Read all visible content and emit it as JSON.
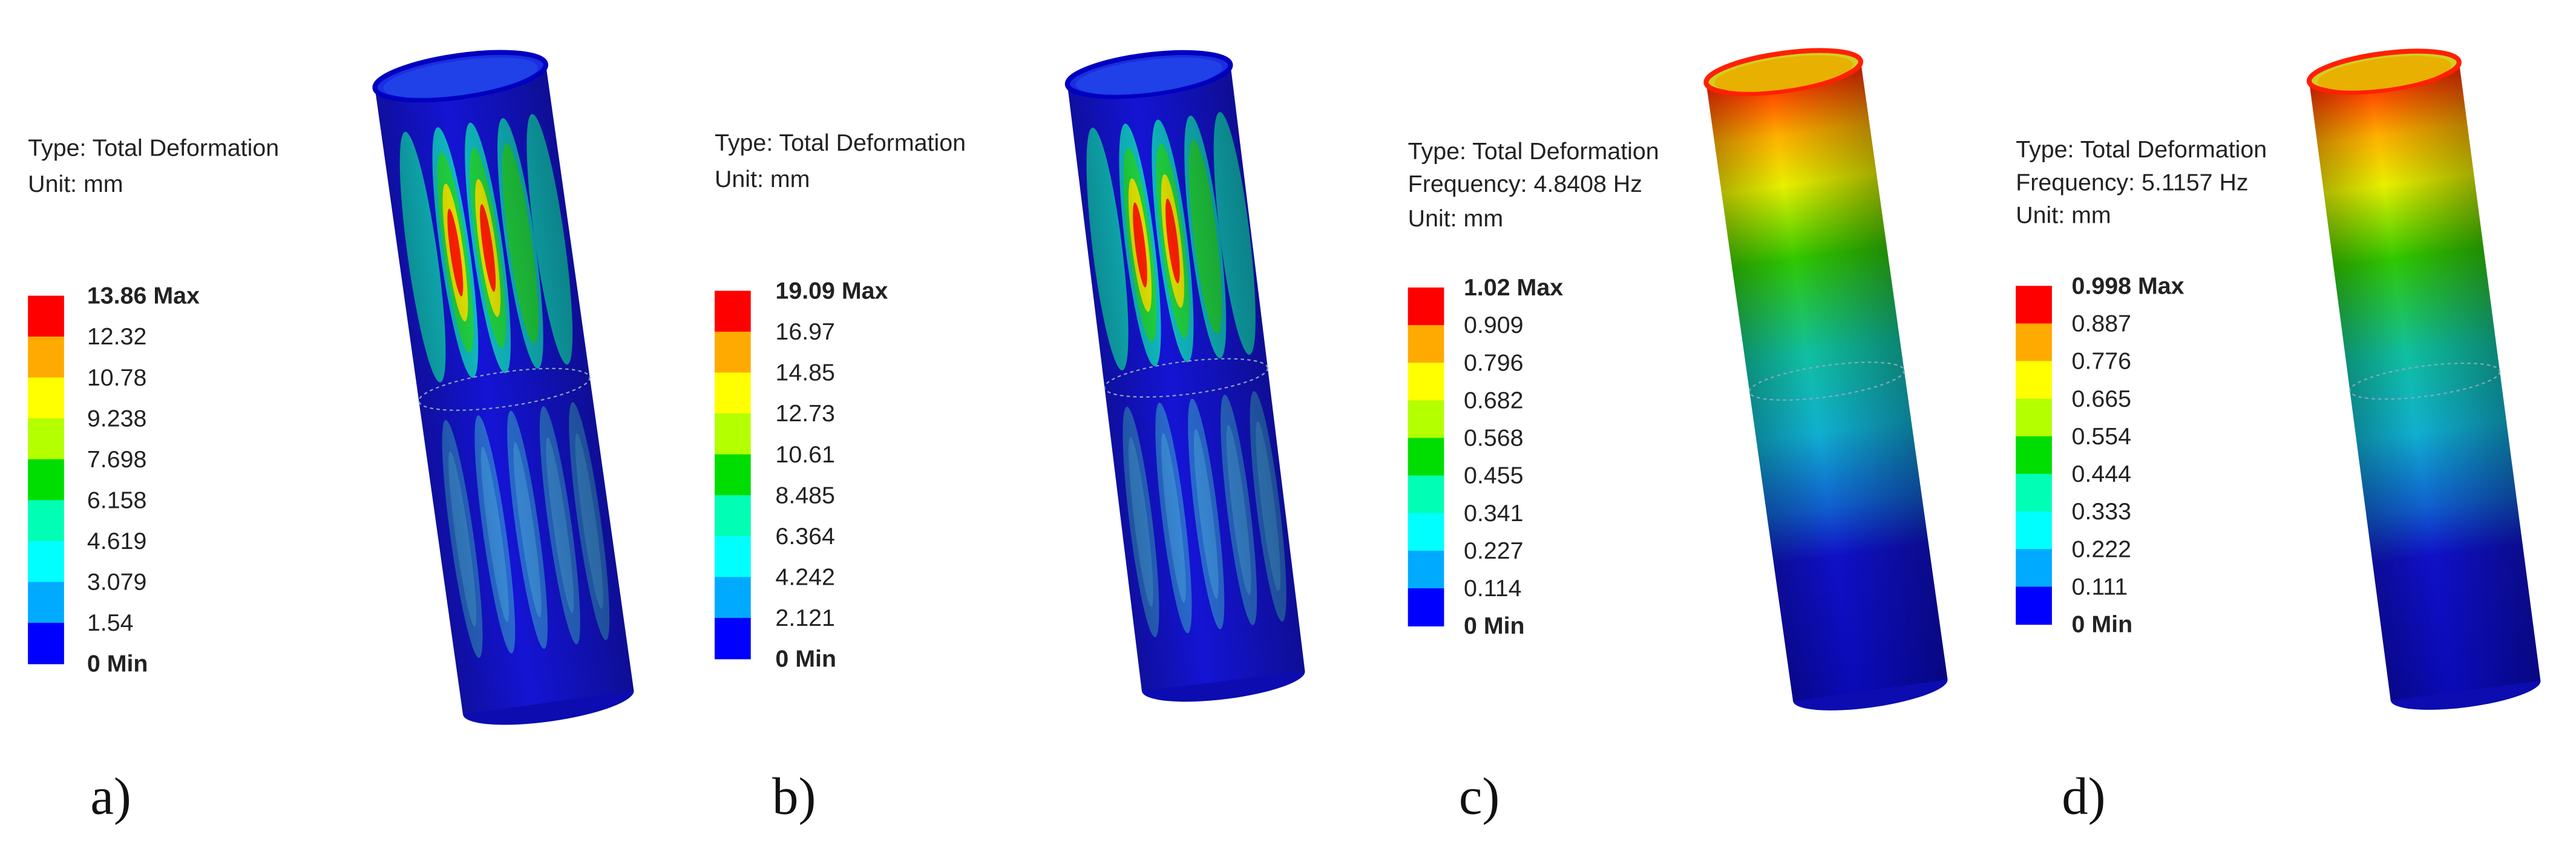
{
  "panels": [
    {
      "type_text": "Type: Total Deformation",
      "unit": "Unit: mm",
      "legend": [
        "13.86 Max",
        "12.32",
        "10.78",
        "9.238",
        "7.698",
        "6.158",
        "4.619",
        "3.079",
        "1.54",
        "0 Min"
      ],
      "label": "a)"
    },
    {
      "type_text": "Type: Total Deformation",
      "unit": "Unit: mm",
      "legend": [
        "19.09 Max",
        "16.97",
        "14.85",
        "12.73",
        "10.61",
        "8.485",
        "6.364",
        "4.242",
        "2.121",
        "0 Min"
      ],
      "label": "b)"
    },
    {
      "type_text": "Type: Total Deformation",
      "frequency": "Frequency: 4.8408 Hz",
      "unit": "Unit: mm",
      "legend": [
        "1.02 Max",
        "0.909",
        "0.796",
        "0.682",
        "0.568",
        "0.455",
        "0.341",
        "0.227",
        "0.114",
        "0 Min"
      ],
      "label": "c)"
    },
    {
      "type_text": "Type: Total Deformation",
      "frequency": "Frequency: 5.1157 Hz",
      "unit": "Unit: mm",
      "legend": [
        "0.998 Max",
        "0.887",
        "0.776",
        "0.665",
        "0.554",
        "0.444",
        "0.333",
        "0.222",
        "0.111",
        "0 Min"
      ],
      "label": "d)"
    }
  ]
}
